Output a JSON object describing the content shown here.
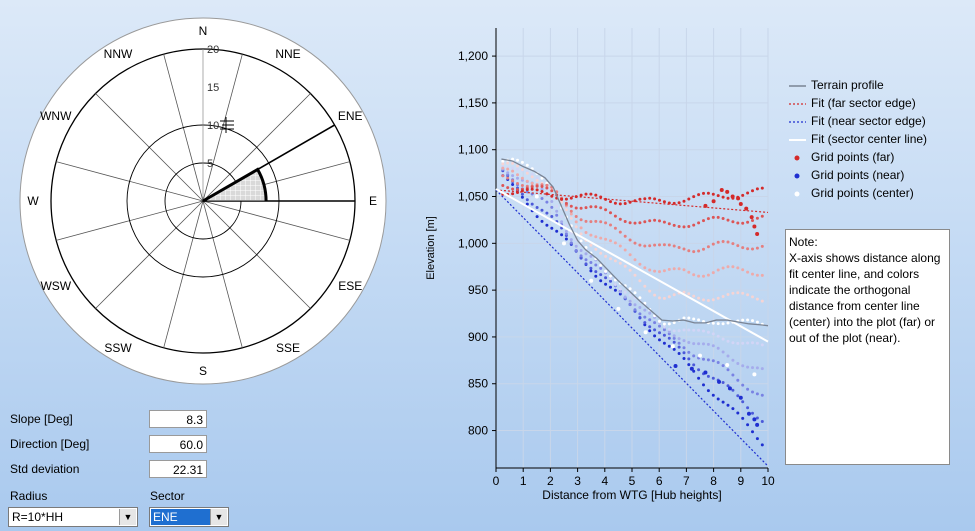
{
  "wind_rose": {
    "directions": [
      "N",
      "NNE",
      "ENE",
      "E",
      "ESE",
      "SSE",
      "S",
      "SSW",
      "WSW",
      "W",
      "WNW",
      "NNW"
    ],
    "ring_labels": [
      "20",
      "15",
      "10",
      "5"
    ],
    "ring_values": [
      20,
      15,
      10,
      5
    ],
    "slope_value": 8.3,
    "sector_start_deg": 60,
    "sector_end_deg": 90
  },
  "fields": {
    "slope_label": "Slope [Deg]",
    "slope_value": "8.3",
    "direction_label": "Direction [Deg]",
    "direction_value": "60.0",
    "std_label": "Std deviation",
    "std_value": "22.31",
    "radius_label": "Radius",
    "radius_value": "R=10*HH",
    "sector_label": "Sector",
    "sector_value": "ENE"
  },
  "legend": {
    "terrain": "Terrain profile",
    "fit_far": "Fit (far sector edge)",
    "fit_near": "Fit (near sector edge)",
    "fit_center": "Fit (sector center line)",
    "grid_far": "Grid points (far)",
    "grid_near": "Grid points (near)",
    "grid_center": "Grid points (center)"
  },
  "note": {
    "title": "Note:",
    "text": "X-axis shows distance along fit center line, and colors indicate the orthogonal distance from center line (center) into the plot (far) or out of the plot (near)."
  },
  "colors": {
    "far": "#d42a2a",
    "near": "#1f2fd0",
    "center": "#ffffff",
    "terrain": "#7a8494",
    "sector_fill": "#cfcfcf"
  },
  "chart_data": {
    "type": "scatter",
    "title": "",
    "xlabel": "Distance from WTG [Hub heights]",
    "ylabel": "Elevation [m]",
    "xlim": [
      0,
      10
    ],
    "ylim": [
      760,
      1230
    ],
    "x_ticks": [
      0,
      1,
      2,
      3,
      4,
      5,
      6,
      7,
      8,
      9,
      10
    ],
    "y_ticks": [
      800,
      850,
      900,
      950,
      1000,
      1050,
      1100,
      1150,
      1200
    ],
    "y_tick_labels": [
      "800",
      "850",
      "900",
      "950",
      "1,000",
      "1,050",
      "1,100",
      "1,150",
      "1,200"
    ],
    "grid": true,
    "legend_position": "right",
    "series": [
      {
        "name": "Terrain profile",
        "kind": "line",
        "x": [
          0.2,
          0.6,
          1.0,
          1.4,
          1.8,
          2.1,
          2.4,
          2.7,
          3.0,
          3.3,
          3.7,
          4.1,
          4.5,
          4.9,
          5.3,
          5.7,
          6.1,
          6.5,
          6.9,
          7.3,
          7.7,
          8.1,
          8.5,
          8.9,
          9.3,
          9.7,
          10.0
        ],
        "y": [
          1090,
          1088,
          1082,
          1077,
          1070,
          1060,
          1040,
          1020,
          1003,
          993,
          984,
          972,
          960,
          949,
          938,
          928,
          918,
          917,
          918,
          915,
          915,
          918,
          918,
          916,
          914,
          913,
          912
        ]
      },
      {
        "name": "Fit (far sector edge)",
        "kind": "line",
        "x": [
          0,
          10
        ],
        "y": [
          1057,
          1033
        ]
      },
      {
        "name": "Fit (near sector edge)",
        "kind": "line",
        "x": [
          0,
          10
        ],
        "y": [
          1057,
          762
        ]
      },
      {
        "name": "Fit (sector center line)",
        "kind": "line",
        "x": [
          0,
          10
        ],
        "y": [
          1058,
          895
        ]
      },
      {
        "name": "Grid points (far)",
        "kind": "points",
        "x": [
          7.7,
          8.0,
          8.3,
          8.5,
          8.7,
          8.9,
          9.0,
          9.2,
          9.4,
          9.5,
          9.6
        ],
        "y": [
          1040,
          1045,
          1057,
          1055,
          1050,
          1048,
          1042,
          1037,
          1028,
          1018,
          1010
        ]
      },
      {
        "name": "Grid points (near)",
        "kind": "points",
        "x": [
          6.6,
          7.2,
          7.7,
          8.2,
          8.6,
          9.0,
          9.3,
          9.5,
          9.6
        ],
        "y": [
          869,
          866,
          862,
          852,
          845,
          835,
          818,
          812,
          806
        ]
      },
      {
        "name": "Grid points (center)",
        "kind": "points",
        "x": [
          1.5,
          2.5,
          3.5,
          4.5,
          5.5,
          6.5,
          7.5,
          8.5,
          9.5
        ],
        "y": [
          1050,
          1000,
          960,
          930,
          905,
          890,
          880,
          870,
          860
        ]
      }
    ]
  }
}
